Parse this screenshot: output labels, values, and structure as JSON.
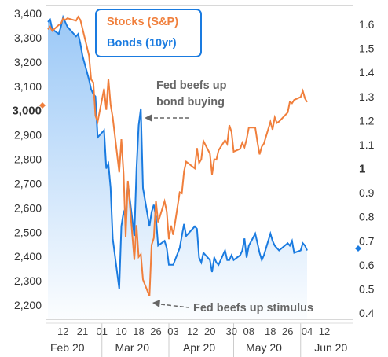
{
  "chart_data": {
    "type": "line",
    "legend": {
      "placement": "top-left",
      "items": [
        {
          "label": "Stocks (S&P)",
          "color": "#f07f3c"
        },
        {
          "label": "Bonds (10yr)",
          "color": "#1a7be0"
        }
      ]
    },
    "left_axis": {
      "ticks": [
        "3,400",
        "3,300",
        "3,200",
        "3,100",
        "3,000",
        "2,900",
        "2,800",
        "2,700",
        "2,600",
        "2,500",
        "2,400",
        "2,300",
        "2,200"
      ],
      "emphasized": "3,000",
      "range": [
        2150,
        3430
      ]
    },
    "right_axis": {
      "ticks": [
        "1.6",
        "1.5",
        "1.4",
        "1.3",
        "1.2",
        "1.1",
        "1",
        "0.9",
        "0.8",
        "0.7",
        "0.6",
        "0.5",
        "0.4"
      ],
      "emphasized": "1",
      "range": [
        0.35,
        1.66
      ]
    },
    "x_ticks": [
      "12",
      "21",
      "01",
      "10",
      "18",
      "26",
      "03",
      "12",
      "20",
      "30",
      "08",
      "18",
      "26",
      "04",
      "12"
    ],
    "months": [
      "Feb 20",
      "Mar 20",
      "Apr 20",
      "May 20",
      "Jun 20"
    ],
    "annotations": [
      {
        "text_line1": "Fed beefs up",
        "text_line2": "bond buying"
      },
      {
        "text_line1": "Fed beefs up stimulus"
      }
    ],
    "series": [
      {
        "name": "Stocks (S&P)",
        "axis": "left",
        "color": "#f07f3c",
        "points": [
          [
            "2020-02-05",
            3334
          ],
          [
            "2020-02-06",
            3345
          ],
          [
            "2020-02-07",
            3328
          ],
          [
            "2020-02-10",
            3352
          ],
          [
            "2020-02-11",
            3357
          ],
          [
            "2020-02-12",
            3379
          ],
          [
            "2020-02-13",
            3373
          ],
          [
            "2020-02-14",
            3380
          ],
          [
            "2020-02-18",
            3370
          ],
          [
            "2020-02-19",
            3386
          ],
          [
            "2020-02-20",
            3373
          ],
          [
            "2020-02-21",
            3338
          ],
          [
            "2020-02-24",
            3226
          ],
          [
            "2020-02-25",
            3128
          ],
          [
            "2020-02-26",
            3116
          ],
          [
            "2020-02-27",
            2979
          ],
          [
            "2020-02-28",
            2954
          ],
          [
            "2020-03-02",
            3090
          ],
          [
            "2020-03-03",
            3003
          ],
          [
            "2020-03-04",
            3130
          ],
          [
            "2020-03-05",
            3024
          ],
          [
            "2020-03-06",
            2972
          ],
          [
            "2020-03-09",
            2746
          ],
          [
            "2020-03-10",
            2882
          ],
          [
            "2020-03-11",
            2741
          ],
          [
            "2020-03-12",
            2481
          ],
          [
            "2020-03-13",
            2711
          ],
          [
            "2020-03-16",
            2386
          ],
          [
            "2020-03-17",
            2529
          ],
          [
            "2020-03-18",
            2398
          ],
          [
            "2020-03-19",
            2409
          ],
          [
            "2020-03-20",
            2305
          ],
          [
            "2020-03-23",
            2237
          ],
          [
            "2020-03-24",
            2447
          ],
          [
            "2020-03-25",
            2476
          ],
          [
            "2020-03-26",
            2630
          ],
          [
            "2020-03-27",
            2541
          ],
          [
            "2020-03-30",
            2627
          ],
          [
            "2020-03-31",
            2585
          ],
          [
            "2020-04-01",
            2471
          ],
          [
            "2020-04-02",
            2527
          ],
          [
            "2020-04-03",
            2489
          ],
          [
            "2020-04-06",
            2664
          ],
          [
            "2020-04-07",
            2660
          ],
          [
            "2020-04-08",
            2750
          ],
          [
            "2020-04-09",
            2790
          ],
          [
            "2020-04-13",
            2762
          ],
          [
            "2020-04-14",
            2846
          ],
          [
            "2020-04-15",
            2784
          ],
          [
            "2020-04-16",
            2800
          ],
          [
            "2020-04-17",
            2875
          ],
          [
            "2020-04-20",
            2823
          ],
          [
            "2020-04-21",
            2737
          ],
          [
            "2020-04-22",
            2800
          ],
          [
            "2020-04-23",
            2798
          ],
          [
            "2020-04-24",
            2837
          ],
          [
            "2020-04-27",
            2878
          ],
          [
            "2020-04-28",
            2863
          ],
          [
            "2020-04-29",
            2940
          ],
          [
            "2020-04-30",
            2912
          ],
          [
            "2020-05-01",
            2831
          ],
          [
            "2020-05-04",
            2843
          ],
          [
            "2020-05-05",
            2868
          ],
          [
            "2020-05-06",
            2849
          ],
          [
            "2020-05-07",
            2882
          ],
          [
            "2020-05-08",
            2930
          ],
          [
            "2020-05-11",
            2930
          ],
          [
            "2020-05-12",
            2870
          ],
          [
            "2020-05-13",
            2820
          ],
          [
            "2020-05-14",
            2852
          ],
          [
            "2020-05-15",
            2864
          ],
          [
            "2020-05-18",
            2954
          ],
          [
            "2020-05-19",
            2922
          ],
          [
            "2020-05-20",
            2972
          ],
          [
            "2020-05-21",
            2949
          ],
          [
            "2020-05-22",
            2955
          ],
          [
            "2020-05-26",
            2992
          ],
          [
            "2020-05-27",
            3036
          ],
          [
            "2020-05-28",
            3030
          ],
          [
            "2020-05-29",
            3044
          ],
          [
            "2020-06-01",
            3056
          ],
          [
            "2020-06-02",
            3081
          ],
          [
            "2020-06-03",
            3050
          ],
          [
            "2020-06-04",
            3035
          ]
        ]
      },
      {
        "name": "Bonds (10yr)",
        "axis": "right",
        "color": "#1a7be0",
        "points": [
          [
            "2020-02-05",
            1.61
          ],
          [
            "2020-02-06",
            1.62
          ],
          [
            "2020-02-07",
            1.58
          ],
          [
            "2020-02-10",
            1.56
          ],
          [
            "2020-02-11",
            1.59
          ],
          [
            "2020-02-12",
            1.63
          ],
          [
            "2020-02-13",
            1.61
          ],
          [
            "2020-02-14",
            1.59
          ],
          [
            "2020-02-18",
            1.55
          ],
          [
            "2020-02-19",
            1.56
          ],
          [
            "2020-02-20",
            1.52
          ],
          [
            "2020-02-21",
            1.47
          ],
          [
            "2020-02-24",
            1.37
          ],
          [
            "2020-02-25",
            1.33
          ],
          [
            "2020-02-26",
            1.31
          ],
          [
            "2020-02-27",
            1.3
          ],
          [
            "2020-02-28",
            1.13
          ],
          [
            "2020-03-02",
            1.16
          ],
          [
            "2020-03-03",
            1.0
          ],
          [
            "2020-03-04",
            1.02
          ],
          [
            "2020-03-05",
            0.92
          ],
          [
            "2020-03-06",
            0.71
          ],
          [
            "2020-03-09",
            0.5
          ],
          [
            "2020-03-10",
            0.76
          ],
          [
            "2020-03-11",
            0.82
          ],
          [
            "2020-03-12",
            0.8
          ],
          [
            "2020-03-13",
            0.94
          ],
          [
            "2020-03-16",
            0.72
          ],
          [
            "2020-03-17",
            1.0
          ],
          [
            "2020-03-18",
            1.18
          ],
          [
            "2020-03-19",
            1.25
          ],
          [
            "2020-03-20",
            0.92
          ],
          [
            "2020-03-23",
            0.76
          ],
          [
            "2020-03-24",
            0.82
          ],
          [
            "2020-03-25",
            0.85
          ],
          [
            "2020-03-26",
            0.8
          ],
          [
            "2020-03-27",
            0.68
          ],
          [
            "2020-03-30",
            0.7
          ],
          [
            "2020-03-31",
            0.67
          ],
          [
            "2020-04-01",
            0.6
          ],
          [
            "2020-04-02",
            0.6
          ],
          [
            "2020-04-03",
            0.6
          ],
          [
            "2020-04-06",
            0.67
          ],
          [
            "2020-04-07",
            0.72
          ],
          [
            "2020-04-08",
            0.77
          ],
          [
            "2020-04-09",
            0.72
          ],
          [
            "2020-04-13",
            0.76
          ],
          [
            "2020-04-14",
            0.75
          ],
          [
            "2020-04-15",
            0.63
          ],
          [
            "2020-04-16",
            0.61
          ],
          [
            "2020-04-17",
            0.65
          ],
          [
            "2020-04-20",
            0.62
          ],
          [
            "2020-04-21",
            0.57
          ],
          [
            "2020-04-22",
            0.63
          ],
          [
            "2020-04-23",
            0.61
          ],
          [
            "2020-04-24",
            0.6
          ],
          [
            "2020-04-27",
            0.66
          ],
          [
            "2020-04-28",
            0.62
          ],
          [
            "2020-04-29",
            0.62
          ],
          [
            "2020-04-30",
            0.64
          ],
          [
            "2020-05-01",
            0.62
          ],
          [
            "2020-05-04",
            0.64
          ],
          [
            "2020-05-05",
            0.66
          ],
          [
            "2020-05-06",
            0.71
          ],
          [
            "2020-05-07",
            0.63
          ],
          [
            "2020-05-08",
            0.68
          ],
          [
            "2020-05-11",
            0.73
          ],
          [
            "2020-05-12",
            0.69
          ],
          [
            "2020-05-13",
            0.65
          ],
          [
            "2020-05-14",
            0.62
          ],
          [
            "2020-05-15",
            0.64
          ],
          [
            "2020-05-18",
            0.73
          ],
          [
            "2020-05-19",
            0.7
          ],
          [
            "2020-05-20",
            0.68
          ],
          [
            "2020-05-21",
            0.67
          ],
          [
            "2020-05-22",
            0.66
          ],
          [
            "2020-05-26",
            0.69
          ],
          [
            "2020-05-27",
            0.68
          ],
          [
            "2020-05-28",
            0.7
          ],
          [
            "2020-05-29",
            0.65
          ],
          [
            "2020-06-01",
            0.66
          ],
          [
            "2020-06-02",
            0.69
          ],
          [
            "2020-06-03",
            0.68
          ],
          [
            "2020-06-04",
            0.66
          ]
        ]
      }
    ]
  }
}
